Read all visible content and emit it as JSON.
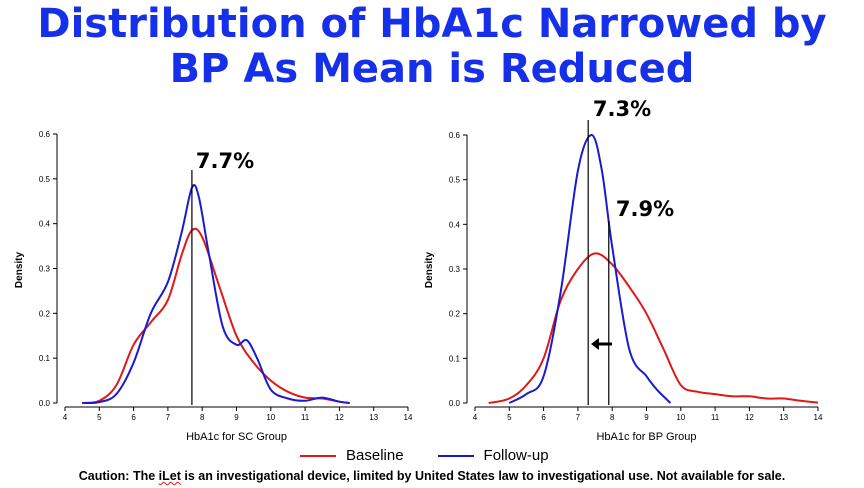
{
  "title_line1": "Distribution of HbA1c Narrowed by",
  "title_line2": "BP As Mean is Reduced",
  "legend": {
    "baseline": "Baseline",
    "followup": "Follow-up"
  },
  "caution": {
    "pre": "Caution: The ",
    "ilet": "iLet",
    "post": " is an investigational device, limited by United States law to investigational use. Not available for sale."
  },
  "colors": {
    "title": "#1530e8",
    "baseline": "#e01818",
    "followup": "#1a1ad0"
  },
  "chart_data": [
    {
      "type": "line",
      "xlabel": "HbA1c for SC Group",
      "ylabel": "Density",
      "xlim": [
        4,
        14
      ],
      "ylim": [
        0,
        0.6
      ],
      "xticks": [
        4,
        5,
        6,
        7,
        8,
        9,
        10,
        11,
        12,
        13,
        14
      ],
      "yticks": [
        0.0,
        0.1,
        0.2,
        0.3,
        0.4,
        0.5,
        0.6
      ],
      "ytick_labels": [
        "0.0",
        "0.1",
        "0.2",
        "0.3",
        "0.4",
        "0.5",
        "0.6"
      ],
      "series": [
        {
          "name": "Baseline",
          "color": "#e01818",
          "points": [
            [
              4.5,
              0.0
            ],
            [
              5.0,
              0.005
            ],
            [
              5.5,
              0.04
            ],
            [
              6.0,
              0.13
            ],
            [
              6.5,
              0.18
            ],
            [
              7.0,
              0.23
            ],
            [
              7.4,
              0.33
            ],
            [
              7.7,
              0.385
            ],
            [
              8.0,
              0.37
            ],
            [
              8.5,
              0.26
            ],
            [
              9.0,
              0.15
            ],
            [
              9.5,
              0.09
            ],
            [
              10.0,
              0.05
            ],
            [
              10.5,
              0.025
            ],
            [
              11.0,
              0.012
            ],
            [
              11.5,
              0.01
            ],
            [
              12.0,
              0.003
            ],
            [
              12.3,
              0.0
            ]
          ]
        },
        {
          "name": "Follow-up",
          "color": "#1a1ad0",
          "points": [
            [
              4.5,
              0.0
            ],
            [
              5.0,
              0.002
            ],
            [
              5.5,
              0.02
            ],
            [
              6.0,
              0.09
            ],
            [
              6.5,
              0.2
            ],
            [
              7.0,
              0.27
            ],
            [
              7.4,
              0.38
            ],
            [
              7.7,
              0.48
            ],
            [
              7.9,
              0.46
            ],
            [
              8.2,
              0.33
            ],
            [
              8.6,
              0.17
            ],
            [
              9.0,
              0.13
            ],
            [
              9.3,
              0.14
            ],
            [
              9.6,
              0.1
            ],
            [
              10.0,
              0.03
            ],
            [
              10.5,
              0.01
            ],
            [
              11.0,
              0.005
            ],
            [
              11.5,
              0.012
            ],
            [
              12.0,
              0.003
            ],
            [
              12.3,
              0.0
            ]
          ]
        }
      ],
      "vlines": [
        {
          "x": 7.7,
          "label": "7.7%"
        }
      ]
    },
    {
      "type": "line",
      "xlabel": "HbA1c for BP Group",
      "ylabel": "Density",
      "xlim": [
        4,
        14
      ],
      "ylim": [
        0,
        0.6
      ],
      "xticks": [
        4,
        5,
        6,
        7,
        8,
        9,
        10,
        11,
        12,
        13,
        14
      ],
      "yticks": [
        0.0,
        0.1,
        0.2,
        0.3,
        0.4,
        0.5,
        0.6
      ],
      "ytick_labels": [
        "0.0",
        "0.1",
        "0.2",
        "0.3",
        "0.4",
        "0.5",
        "0.6"
      ],
      "series": [
        {
          "name": "Baseline",
          "color": "#e01818",
          "points": [
            [
              4.4,
              0.0
            ],
            [
              5.0,
              0.01
            ],
            [
              5.5,
              0.04
            ],
            [
              6.0,
              0.1
            ],
            [
              6.5,
              0.23
            ],
            [
              7.0,
              0.3
            ],
            [
              7.5,
              0.335
            ],
            [
              8.0,
              0.31
            ],
            [
              8.5,
              0.26
            ],
            [
              9.0,
              0.2
            ],
            [
              9.5,
              0.12
            ],
            [
              10.0,
              0.04
            ],
            [
              10.5,
              0.025
            ],
            [
              11.0,
              0.02
            ],
            [
              11.5,
              0.015
            ],
            [
              12.0,
              0.015
            ],
            [
              12.5,
              0.01
            ],
            [
              13.0,
              0.01
            ],
            [
              13.5,
              0.005
            ],
            [
              14.0,
              0.001
            ]
          ]
        },
        {
          "name": "Follow-up",
          "color": "#1a1ad0",
          "points": [
            [
              5.0,
              0.0
            ],
            [
              5.5,
              0.02
            ],
            [
              6.0,
              0.06
            ],
            [
              6.5,
              0.25
            ],
            [
              7.0,
              0.52
            ],
            [
              7.4,
              0.6
            ],
            [
              7.7,
              0.52
            ],
            [
              8.0,
              0.35
            ],
            [
              8.5,
              0.12
            ],
            [
              9.0,
              0.06
            ],
            [
              9.3,
              0.03
            ],
            [
              9.7,
              0.0
            ]
          ]
        }
      ],
      "vlines": [
        {
          "x": 7.3,
          "label": "7.3%"
        },
        {
          "x": 7.9,
          "label": "7.9%"
        }
      ]
    }
  ]
}
